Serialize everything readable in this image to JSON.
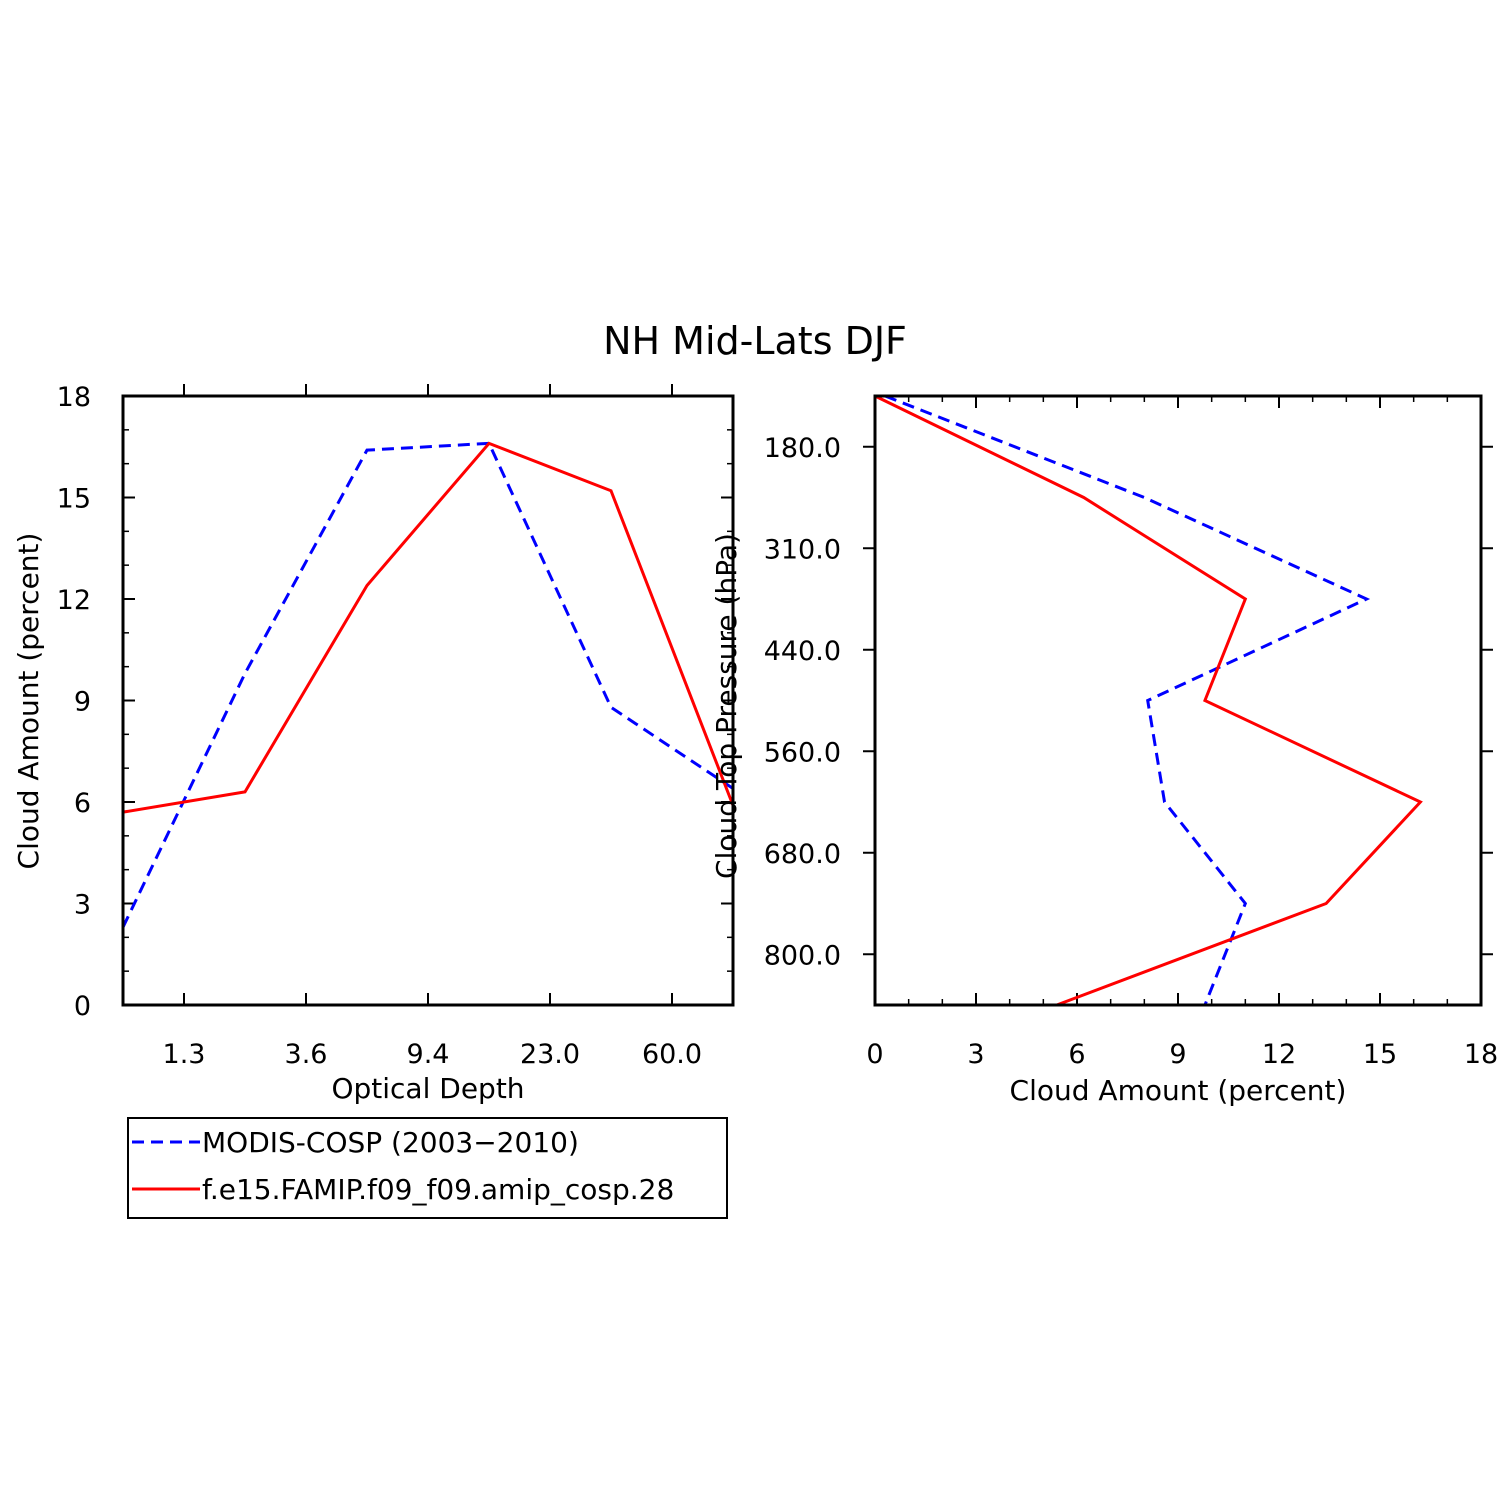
{
  "title": "NH Mid-Lats DJF",
  "chart_data": [
    {
      "type": "line",
      "panel": "left",
      "xlabel": "Optical Depth",
      "ylabel": "Cloud Amount (percent)",
      "x_positions": [
        0,
        1,
        2,
        3,
        4,
        5
      ],
      "x_tick_positions": [
        0.5,
        1.5,
        2.5,
        3.5,
        4.5
      ],
      "x_tick_labels": [
        "1.3",
        "3.6",
        "9.4",
        "23.0",
        "60.0"
      ],
      "ylim": [
        0,
        18
      ],
      "y_ticks": [
        0,
        3,
        6,
        9,
        12,
        15,
        18
      ],
      "y_tick_labels": [
        "0",
        "3",
        "6",
        "9",
        "12",
        "15",
        "18"
      ],
      "series": [
        {
          "name": "MODIS-COSP (2003-2010)",
          "color": "#0000ff",
          "dash": true,
          "values": [
            2.3,
            9.8,
            16.4,
            16.6,
            8.8,
            6.4
          ]
        },
        {
          "name": "f.e15.FAMIP.f09_f09.amip_cosp.28",
          "color": "#ff0000",
          "dash": false,
          "values": [
            5.7,
            6.3,
            12.4,
            16.6,
            15.2,
            5.9
          ]
        }
      ]
    },
    {
      "type": "line",
      "panel": "right",
      "xlabel": "Cloud Amount (percent)",
      "ylabel": "Cloud Top Pressure (hPa)",
      "xlim": [
        0,
        18
      ],
      "x_ticks": [
        0,
        3,
        6,
        9,
        12,
        15,
        18
      ],
      "x_tick_labels": [
        "0",
        "3",
        "6",
        "9",
        "12",
        "15",
        "18"
      ],
      "y_positions": [
        0,
        1,
        2,
        3,
        4,
        5,
        6
      ],
      "y_tick_positions": [
        0.5,
        1.5,
        2.5,
        3.5,
        4.5,
        5.5
      ],
      "y_tick_labels": [
        "180.0",
        "310.0",
        "440.0",
        "560.0",
        "680.0",
        "800.0"
      ],
      "series": [
        {
          "name": "MODIS-COSP (2003-2010)",
          "color": "#0000ff",
          "dash": true,
          "values": [
            0.3,
            8.0,
            14.6,
            8.1,
            8.6,
            11.0,
            9.8
          ]
        },
        {
          "name": "f.e15.FAMIP.f09_f09.amip_cosp.28",
          "color": "#ff0000",
          "dash": false,
          "values": [
            0.0,
            6.2,
            11.0,
            9.8,
            16.2,
            13.4,
            5.4
          ]
        }
      ]
    }
  ],
  "legend": {
    "entries": [
      {
        "label": "MODIS-COSP (2003−2010)",
        "color": "#0000ff",
        "dash": true
      },
      {
        "label": "f.e15.FAMIP.f09_f09.amip_cosp.28",
        "color": "#ff0000",
        "dash": false
      }
    ]
  }
}
